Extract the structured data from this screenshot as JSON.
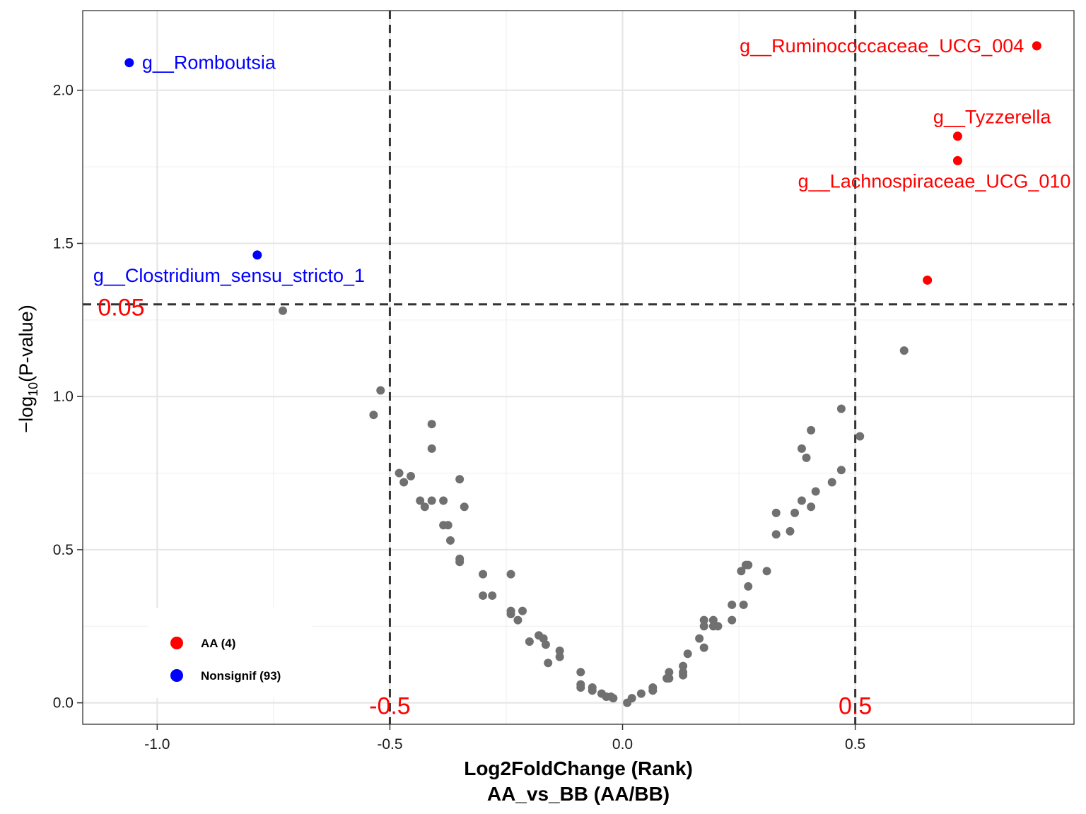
{
  "chart_data": {
    "type": "scatter",
    "xlabel_line1": "Log2FoldChange (Rank)",
    "xlabel_line2": "AA_vs_BB (AA/BB)",
    "ylabel_prefix": "−log",
    "ylabel_sub": "10",
    "ylabel_suffix": "(P-value)",
    "xlim": [
      -1.16,
      0.97
    ],
    "ylim": [
      -0.07,
      2.26
    ],
    "x_ticks": [
      -1.0,
      -0.5,
      0.0,
      0.5
    ],
    "x_tick_labels": [
      "-1.0",
      "-0.5",
      "0.0",
      "0.5"
    ],
    "y_ticks": [
      0.0,
      0.5,
      1.0,
      1.5,
      2.0
    ],
    "y_tick_labels": [
      "0.0",
      "0.5",
      "1.0",
      "1.5",
      "2.0"
    ],
    "y_minor_breaks": [
      0.25,
      0.75,
      1.25,
      1.75
    ],
    "grid": true,
    "colors": {
      "AA": "#ff0000",
      "Nonsignif": "#0000ff",
      "other": "#707070",
      "threshold_label": "#ff0000",
      "line": "#333333"
    },
    "thresholds": {
      "vlines": [
        -0.5,
        0.5
      ],
      "hline": 1.301,
      "labels": [
        {
          "text": "-0.5",
          "x": -0.5,
          "y": 0.0
        },
        {
          "text": "0.5",
          "x": 0.5,
          "y": 0.0
        },
        {
          "text": "0.05",
          "x": -1.1,
          "y": 1.301
        }
      ]
    },
    "legend": {
      "placement": "bottom-left",
      "entries": [
        {
          "key": "AA",
          "label": "AA (4)"
        },
        {
          "key": "Nonsignif",
          "label": "Nonsignif (93)"
        }
      ]
    },
    "highlighted": [
      {
        "group": "Nonsignif",
        "x": -1.06,
        "y": 2.09,
        "label": "g__Romboutsia"
      },
      {
        "group": "Nonsignif",
        "x": -0.785,
        "y": 1.462,
        "label": "g__Clostridium_sensu_stricto_1"
      },
      {
        "group": "AA",
        "x": 0.89,
        "y": 2.145,
        "label": "g__Ruminococcaceae_UCG_004"
      },
      {
        "group": "AA",
        "x": 0.72,
        "y": 1.85,
        "label": "g__Tyzzerella"
      },
      {
        "group": "AA",
        "x": 0.72,
        "y": 1.77,
        "label": "g__Lachnospiraceae_UCG_010"
      },
      {
        "group": "AA",
        "x": 0.655,
        "y": 1.38,
        "label": ""
      }
    ],
    "points": [
      [
        -0.73,
        1.28
      ],
      [
        0.605,
        1.15
      ],
      [
        -0.52,
        1.02
      ],
      [
        -0.535,
        0.94
      ],
      [
        0.47,
        0.96
      ],
      [
        -0.41,
        0.91
      ],
      [
        0.51,
        0.87
      ],
      [
        0.405,
        0.89
      ],
      [
        -0.41,
        0.83
      ],
      [
        0.385,
        0.83
      ],
      [
        0.395,
        0.8
      ],
      [
        -0.48,
        0.75
      ],
      [
        -0.455,
        0.74
      ],
      [
        -0.47,
        0.72
      ],
      [
        -0.35,
        0.73
      ],
      [
        0.47,
        0.76
      ],
      [
        0.45,
        0.72
      ],
      [
        -0.435,
        0.66
      ],
      [
        -0.41,
        0.66
      ],
      [
        -0.385,
        0.66
      ],
      [
        -0.425,
        0.64
      ],
      [
        -0.34,
        0.64
      ],
      [
        0.385,
        0.66
      ],
      [
        0.415,
        0.69
      ],
      [
        0.405,
        0.64
      ],
      [
        0.33,
        0.62
      ],
      [
        0.37,
        0.62
      ],
      [
        -0.385,
        0.58
      ],
      [
        -0.375,
        0.58
      ],
      [
        -0.37,
        0.53
      ],
      [
        0.33,
        0.55
      ],
      [
        0.36,
        0.56
      ],
      [
        -0.35,
        0.47
      ],
      [
        -0.35,
        0.46
      ],
      [
        0.265,
        0.45
      ],
      [
        0.27,
        0.45
      ],
      [
        0.255,
        0.43
      ],
      [
        0.31,
        0.43
      ],
      [
        -0.3,
        0.42
      ],
      [
        -0.24,
        0.42
      ],
      [
        0.27,
        0.38
      ],
      [
        -0.3,
        0.35
      ],
      [
        -0.28,
        0.35
      ],
      [
        0.235,
        0.32
      ],
      [
        0.26,
        0.32
      ],
      [
        -0.24,
        0.3
      ],
      [
        -0.24,
        0.29
      ],
      [
        -0.215,
        0.3
      ],
      [
        -0.225,
        0.27
      ],
      [
        0.175,
        0.27
      ],
      [
        0.195,
        0.27
      ],
      [
        0.235,
        0.27
      ],
      [
        0.195,
        0.25
      ],
      [
        0.205,
        0.25
      ],
      [
        -0.18,
        0.22
      ],
      [
        -0.17,
        0.21
      ],
      [
        -0.2,
        0.2
      ],
      [
        -0.165,
        0.19
      ],
      [
        0.165,
        0.21
      ],
      [
        0.175,
        0.18
      ],
      [
        0.14,
        0.16
      ],
      [
        -0.135,
        0.17
      ],
      [
        -0.135,
        0.15
      ],
      [
        -0.16,
        0.13
      ],
      [
        0.13,
        0.12
      ],
      [
        0.13,
        0.1
      ],
      [
        0.13,
        0.09
      ],
      [
        0.1,
        0.1
      ],
      [
        0.1,
        0.08
      ],
      [
        0.095,
        0.08
      ],
      [
        -0.09,
        0.1
      ],
      [
        -0.09,
        0.06
      ],
      [
        -0.09,
        0.05
      ],
      [
        -0.065,
        0.05
      ],
      [
        -0.065,
        0.04
      ],
      [
        0.065,
        0.05
      ],
      [
        0.065,
        0.04
      ],
      [
        -0.045,
        0.03
      ],
      [
        -0.035,
        0.02
      ],
      [
        -0.025,
        0.02
      ],
      [
        -0.02,
        0.015
      ],
      [
        0.04,
        0.03
      ],
      [
        0.02,
        0.015
      ],
      [
        0.01,
        0.0
      ],
      [
        0.175,
        0.25
      ]
    ]
  }
}
